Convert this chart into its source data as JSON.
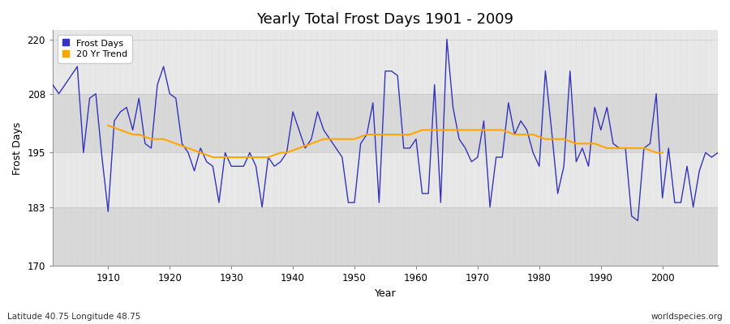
{
  "title": "Yearly Total Frost Days 1901 - 2009",
  "xlabel": "Year",
  "ylabel": "Frost Days",
  "subtitle_left": "Latitude 40.75 Longitude 48.75",
  "subtitle_right": "worldspecies.org",
  "ylim": [
    170,
    222
  ],
  "yticks": [
    170,
    183,
    195,
    208,
    220
  ],
  "xlim": [
    1901,
    2009
  ],
  "xticks": [
    1910,
    1920,
    1930,
    1940,
    1950,
    1960,
    1970,
    1980,
    1990,
    2000
  ],
  "frost_days": [
    210,
    208,
    210,
    212,
    214,
    195,
    207,
    208,
    194,
    182,
    202,
    204,
    205,
    200,
    207,
    197,
    196,
    210,
    214,
    208,
    207,
    197,
    195,
    191,
    196,
    193,
    192,
    184,
    195,
    192,
    192,
    192,
    195,
    192,
    183,
    194,
    192,
    193,
    195,
    204,
    200,
    196,
    198,
    204,
    200,
    198,
    196,
    194,
    184,
    184,
    197,
    199,
    206,
    184,
    213,
    213,
    212,
    196,
    196,
    198,
    186,
    186,
    210,
    184,
    220,
    205,
    198,
    196,
    193,
    194,
    202,
    183,
    194,
    194,
    206,
    199,
    202,
    200,
    195,
    192,
    213,
    200,
    186,
    192,
    213,
    193,
    196,
    192,
    205,
    200,
    205,
    197,
    196,
    196,
    181,
    180,
    196,
    197,
    208,
    185,
    196,
    184,
    184,
    192,
    183,
    191,
    195,
    194,
    195
  ],
  "trend_years": [
    1910,
    1911,
    1912,
    1913,
    1914,
    1915,
    1916,
    1917,
    1918,
    1919,
    1920,
    1921,
    1922,
    1923,
    1924,
    1925,
    1926,
    1927,
    1928,
    1929,
    1930,
    1931,
    1932,
    1933,
    1934,
    1935,
    1936,
    1937,
    1938,
    1939,
    1940,
    1941,
    1942,
    1943,
    1944,
    1945,
    1946,
    1947,
    1948,
    1949,
    1950,
    1951,
    1952,
    1953,
    1954,
    1955,
    1956,
    1957,
    1958,
    1959,
    1960,
    1961,
    1962,
    1963,
    1964,
    1965,
    1966,
    1967,
    1968,
    1969,
    1970,
    1971,
    1972,
    1973,
    1974,
    1975,
    1976,
    1977,
    1978,
    1979,
    1980,
    1981,
    1982,
    1983,
    1984,
    1985,
    1986,
    1987,
    1988,
    1989,
    1990,
    1991,
    1992,
    1993,
    1994,
    1995,
    1996,
    1997,
    1998,
    1999,
    2000
  ],
  "trend_values": [
    201,
    200.5,
    200,
    199.5,
    199,
    199,
    198.5,
    198,
    198,
    198,
    197.5,
    197,
    196.5,
    196,
    195.5,
    195,
    194.5,
    194,
    194,
    194,
    194,
    194,
    194,
    194,
    194,
    194,
    194,
    194.5,
    195,
    195,
    195.5,
    196,
    196.5,
    197,
    197.5,
    198,
    198,
    198,
    198,
    198,
    198,
    198.5,
    199,
    199,
    199,
    199,
    199,
    199,
    199,
    199,
    199.5,
    200,
    200,
    200,
    200,
    200,
    200,
    200,
    200,
    200,
    200,
    200,
    200,
    200,
    200,
    199.5,
    199,
    199,
    199,
    199,
    198.5,
    198,
    198,
    198,
    198,
    197.5,
    197,
    197,
    197,
    197,
    196.5,
    196,
    196,
    196,
    196,
    196,
    196,
    196,
    195.5,
    195,
    195
  ],
  "line_color": "#3333bb",
  "trend_color": "#FFA500",
  "bg_color": "#f0f0f0",
  "plot_bg_light": "#e8e8e8",
  "plot_bg_dark": "#d8d8d8",
  "grid_color": "#cccccc",
  "legend_entries": [
    "Frost Days",
    "20 Yr Trend"
  ]
}
